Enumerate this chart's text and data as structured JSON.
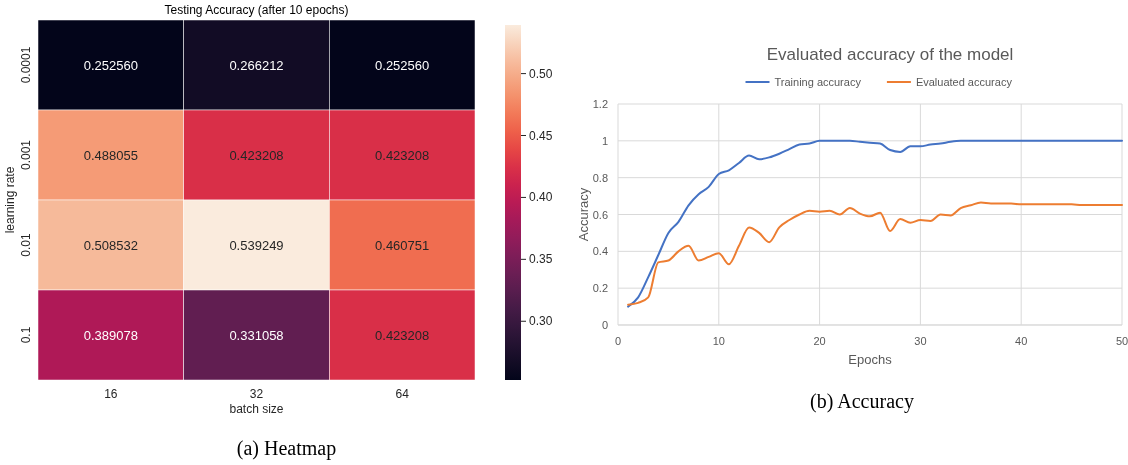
{
  "chart_data": [
    {
      "type": "heatmap",
      "title": "Testing Accuracy (after 10 epochs)",
      "xlabel": "batch size",
      "ylabel": "learning rate",
      "categories": [
        "16",
        "32",
        "64"
      ],
      "y_categories": [
        "0.0001",
        "0.001",
        "0.01",
        "0.1"
      ],
      "cells": [
        [
          0.25256,
          0.266212,
          0.25256
        ],
        [
          0.488055,
          0.423208,
          0.423208
        ],
        [
          0.508532,
          0.539249,
          0.460751
        ],
        [
          0.389078,
          0.331058,
          0.423208
        ]
      ],
      "cell_labels": [
        [
          "0.252560",
          "0.266212",
          "0.252560"
        ],
        [
          "0.488055",
          "0.423208",
          "0.423208"
        ],
        [
          "0.508532",
          "0.539249",
          "0.460751"
        ],
        [
          "0.389078",
          "0.331058",
          "0.423208"
        ]
      ],
      "clim": [
        0.25256,
        0.539249
      ],
      "cticks": [
        {
          "value": 0.3,
          "label": "0.30"
        },
        {
          "value": 0.35,
          "label": "0.35"
        },
        {
          "value": 0.4,
          "label": "0.40"
        },
        {
          "value": 0.45,
          "label": "0.45"
        },
        {
          "value": 0.5,
          "label": "0.50"
        }
      ],
      "annotations": [
        "(a) Heatmap"
      ]
    },
    {
      "type": "line",
      "title": "Evaluated accuracy of the model",
      "xlabel": "Epochs",
      "ylabel": "Accuracy",
      "x": [
        1,
        2,
        3,
        4,
        5,
        6,
        7,
        8,
        9,
        10,
        11,
        12,
        13,
        14,
        15,
        16,
        17,
        18,
        19,
        20,
        21,
        22,
        23,
        24,
        25,
        26,
        27,
        28,
        29,
        30,
        31,
        32,
        33,
        34,
        35,
        36,
        37,
        38,
        39,
        40,
        41,
        42,
        43,
        44,
        45,
        46,
        47,
        48,
        49,
        50
      ],
      "series": [
        {
          "name": "Training accuracy",
          "color": "#4472c4",
          "values": [
            0.1,
            0.15,
            0.26,
            0.38,
            0.5,
            0.56,
            0.65,
            0.71,
            0.75,
            0.82,
            0.84,
            0.88,
            0.92,
            0.9,
            0.91,
            0.93,
            0.955,
            0.98,
            0.985,
            1,
            1,
            1,
            1,
            0.995,
            0.99,
            0.985,
            0.95,
            0.94,
            0.97,
            0.97,
            0.98,
            0.985,
            0.995,
            1,
            1,
            1,
            1,
            1,
            1,
            1,
            1,
            1,
            1,
            1,
            1,
            1,
            1,
            1,
            1,
            1
          ]
        },
        {
          "name": "Evaluated accuracy",
          "color": "#ed7d31",
          "values": [
            0.11,
            0.12,
            0.15,
            0.34,
            0.35,
            0.4,
            0.43,
            0.35,
            0.37,
            0.39,
            0.33,
            0.43,
            0.53,
            0.5,
            0.45,
            0.53,
            0.57,
            0.6,
            0.62,
            0.615,
            0.62,
            0.6,
            0.635,
            0.605,
            0.59,
            0.61,
            0.51,
            0.575,
            0.555,
            0.57,
            0.565,
            0.6,
            0.595,
            0.635,
            0.65,
            0.665,
            0.66,
            0.66,
            0.66,
            0.655,
            0.655,
            0.655,
            0.655,
            0.655,
            0.655,
            0.652,
            0.652,
            0.652,
            0.652,
            0.652
          ]
        }
      ],
      "xlim": [
        0,
        50
      ],
      "xticks": [
        0,
        10,
        20,
        30,
        40,
        50
      ],
      "ylim": [
        0,
        1.2
      ],
      "yticks": [
        0,
        0.2,
        0.4,
        0.6,
        0.8,
        1,
        1.2
      ],
      "grid": true,
      "legend": "top",
      "marker": "none",
      "line_style": "solid",
      "annotations": [
        "(b) Accuracy"
      ]
    }
  ]
}
